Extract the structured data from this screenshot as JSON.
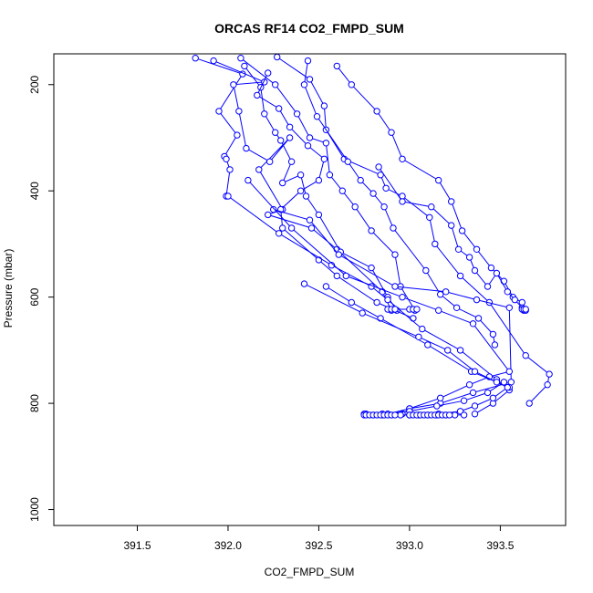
{
  "chart_data": {
    "type": "line",
    "title": "ORCAS RF14 CO2_FMPD_SUM",
    "xlabel": "CO2_FMPD_SUM",
    "ylabel": "Pressure (mbar)",
    "xlim": [
      391.04,
      393.86
    ],
    "ylim": [
      1030,
      142
    ],
    "y_reversed": true,
    "x_ticks": [
      "391.5",
      "392.0",
      "392.5",
      "393.0",
      "393.5"
    ],
    "y_ticks": [
      "200",
      "400",
      "600",
      "800",
      "1000"
    ],
    "grid": false,
    "legend": "none",
    "marker": "open-circle",
    "color": "#0000ff",
    "series": [
      {
        "x": [
          391.82,
          392.08,
          391.95,
          392.05,
          391.98,
          391.99,
          392.01,
          391.99
        ],
        "y": [
          150,
          180,
          250,
          295,
          335,
          340,
          360,
          410
        ]
      },
      {
        "x": [
          391.92,
          392.2,
          392.03,
          392.06,
          392.1,
          392.23,
          392.34,
          392.17,
          392.3,
          392.22,
          392.46,
          392.6,
          392.85,
          392.9
        ],
        "y": [
          155,
          195,
          200,
          250,
          320,
          345,
          300,
          360,
          435,
          445,
          470,
          510,
          590,
          625
        ]
      },
      {
        "x": [
          392.09,
          392.18,
          392.2,
          392.26,
          392.29,
          392.35,
          392.3,
          392.4,
          392.43,
          392.5,
          392.62,
          392.79,
          392.88,
          392.93
        ],
        "y": [
          165,
          205,
          255,
          290,
          305,
          345,
          385,
          370,
          410,
          445,
          515,
          545,
          600,
          625
        ]
      },
      {
        "x": [
          392.22,
          392.16,
          392.28,
          392.34,
          392.44,
          392.53,
          392.5,
          392.4,
          392.29,
          392.3,
          392.5,
          392.6,
          392.82,
          393.02
        ],
        "y": [
          178,
          220,
          245,
          280,
          315,
          340,
          380,
          400,
          435,
          470,
          530,
          560,
          610,
          640
        ]
      },
      {
        "x": [
          392.07,
          392.26,
          392.38,
          392.45,
          392.54,
          392.56,
          392.63,
          392.7,
          392.79,
          392.92,
          392.95,
          393.03
        ],
        "y": [
          150,
          200,
          255,
          300,
          310,
          370,
          400,
          430,
          475,
          520,
          580,
          625
        ]
      },
      {
        "x": [
          392.27,
          392.45,
          392.53,
          392.54,
          392.64,
          392.84,
          392.87,
          392.96,
          393.11,
          393.14,
          393.28,
          393.44,
          393.64,
          393.77,
          393.76,
          393.66
        ],
        "y": [
          148,
          190,
          240,
          285,
          340,
          370,
          395,
          410,
          450,
          500,
          560,
          610,
          710,
          745,
          765,
          800
        ]
      },
      {
        "x": [
          392.44,
          392.42,
          392.49,
          392.66,
          392.73,
          392.8,
          392.86,
          392.91,
          393.09,
          393.17,
          393.26,
          393.38,
          393.46,
          393.47
        ],
        "y": [
          155,
          200,
          260,
          345,
          380,
          405,
          430,
          470,
          550,
          595,
          620,
          640,
          670,
          690
        ]
      },
      {
        "x": [
          392.6,
          392.68,
          392.82,
          392.9,
          392.96,
          393.16,
          393.23,
          393.29,
          393.37,
          393.45,
          393.52,
          393.57,
          393.62,
          393.63
        ],
        "y": [
          165,
          200,
          250,
          290,
          340,
          380,
          420,
          475,
          510,
          545,
          570,
          600,
          610,
          625
        ]
      },
      {
        "x": [
          392.83,
          392.96,
          393.12,
          393.23,
          393.27,
          393.33,
          393.36,
          393.43,
          393.48,
          393.54,
          393.58,
          393.62,
          393.64
        ],
        "y": [
          355,
          420,
          430,
          465,
          510,
          525,
          550,
          580,
          555,
          590,
          605,
          620,
          625
        ]
      },
      {
        "x": [
          392.0,
          392.28,
          392.57,
          392.79,
          392.88,
          393.07,
          393.28,
          393.48,
          393.55,
          393.46,
          393.36
        ],
        "y": [
          410,
          480,
          540,
          580,
          605,
          660,
          700,
          755,
          775,
          800,
          820
        ]
      },
      {
        "x": [
          392.25,
          392.45,
          392.61,
          392.92,
          393.2,
          393.37,
          393.55,
          393.56,
          393.35,
          393.17,
          393.0,
          392.96
        ],
        "y": [
          435,
          455,
          520,
          580,
          590,
          605,
          620,
          760,
          780,
          800,
          810,
          820
        ]
      },
      {
        "x": [
          392.11,
          392.35,
          392.65,
          392.96,
          393.16,
          393.35,
          393.55,
          393.44,
          393.33,
          393.17,
          393.0,
          392.88,
          392.76
        ],
        "y": [
          380,
          470,
          560,
          600,
          625,
          650,
          740,
          750,
          765,
          790,
          810,
          820,
          820
        ]
      },
      {
        "x": [
          392.54,
          392.68,
          392.84,
          393.1,
          393.34,
          393.55,
          393.52,
          393.43,
          393.3,
          393.15,
          393.0,
          392.85,
          392.75
        ],
        "y": [
          580,
          610,
          640,
          690,
          740,
          770,
          760,
          780,
          795,
          805,
          815,
          820,
          820
        ]
      },
      {
        "x": [
          392.42,
          392.74,
          393.05,
          393.21,
          393.36,
          393.48,
          393.54,
          393.46,
          393.36,
          393.28,
          393.16,
          393.0
        ],
        "y": [
          575,
          630,
          675,
          700,
          740,
          760,
          770,
          790,
          805,
          815,
          820,
          822
        ]
      },
      {
        "x": [
          392.75,
          392.8,
          392.85,
          392.9,
          392.95,
          393.0,
          393.05,
          393.1,
          393.15,
          393.2,
          393.25,
          393.3
        ],
        "y": [
          822,
          822,
          822,
          822,
          822,
          822,
          822,
          822,
          822,
          822,
          822,
          822
        ]
      },
      {
        "x": [
          392.76,
          392.78,
          392.8,
          392.82,
          392.84,
          392.86,
          392.88,
          392.9,
          392.92
        ],
        "y": [
          822,
          822,
          822,
          822,
          822,
          822,
          822,
          822,
          822
        ]
      },
      {
        "x": [
          393.0,
          393.02,
          393.04,
          393.06,
          393.08,
          393.1,
          393.12,
          393.14,
          393.16,
          393.18,
          393.2,
          393.22
        ],
        "y": [
          822,
          822,
          822,
          822,
          822,
          822,
          822,
          822,
          822,
          822,
          822,
          822
        ]
      },
      {
        "x": [
          392.88,
          392.9,
          392.92,
          393.0,
          393.02,
          393.04
        ],
        "y": [
          623,
          623,
          623,
          623,
          623,
          623
        ]
      },
      {
        "x": [
          393.62,
          393.63,
          393.64
        ],
        "y": [
          623,
          623,
          623
        ]
      }
    ]
  }
}
